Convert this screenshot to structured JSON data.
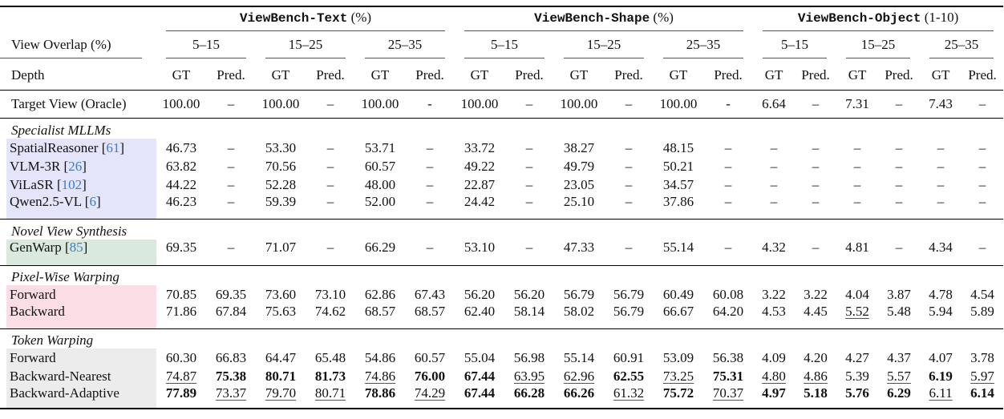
{
  "header": {
    "groups": [
      {
        "name": "ViewBench-Text",
        "unit": "(%)"
      },
      {
        "name": "ViewBench-Shape",
        "unit": "(%)"
      },
      {
        "name": "ViewBench-Object",
        "unit": "(1-10)"
      }
    ],
    "overlap_label": "View Overlap (%)",
    "overlaps": [
      "5–15",
      "15–25",
      "25–35",
      "5–15",
      "15–25",
      "25–35",
      "5–15",
      "15–25",
      "25–35"
    ],
    "depth_label": "Depth",
    "depth": [
      "GT",
      "Pred."
    ]
  },
  "oracle": {
    "label": "Target View (Oracle)",
    "values": [
      "100.00",
      "–",
      "100.00",
      "–",
      "100.00",
      "-",
      "100.00",
      "–",
      "100.00",
      "–",
      "100.00",
      "-",
      "6.64",
      "–",
      "7.31",
      "–",
      "7.43",
      "–"
    ]
  },
  "colors": {
    "specialist": "#e4e4fb",
    "nvs": "#d9e9de",
    "pixel": "#fbdde6",
    "token": "#ececec",
    "cite": "#3a7fc1"
  },
  "sections": [
    {
      "title": "Specialist MLLMs",
      "color": "#e4e4fb",
      "rows": [
        {
          "name": "SpatialReasoner",
          "cite": "61",
          "values": [
            "46.73",
            "–",
            "53.30",
            "–",
            "53.71",
            "–",
            "33.72",
            "–",
            "38.27",
            "–",
            "48.15",
            "–",
            "–",
            "–",
            "–",
            "–",
            "–",
            "–"
          ],
          "styles": []
        },
        {
          "name": "VLM-3R",
          "cite": "26",
          "values": [
            "63.82",
            "–",
            "70.56",
            "–",
            "60.57",
            "–",
            "49.22",
            "–",
            "49.79",
            "–",
            "50.21",
            "–",
            "–",
            "–",
            "–",
            "–",
            "–",
            "–"
          ],
          "styles": []
        },
        {
          "name": "ViLaSR",
          "cite": "102",
          "values": [
            "44.22",
            "–",
            "52.28",
            "–",
            "48.00",
            "–",
            "22.87",
            "–",
            "23.05",
            "–",
            "34.57",
            "–",
            "–",
            "–",
            "–",
            "–",
            "–",
            "–"
          ],
          "styles": []
        },
        {
          "name": "Qwen2.5-VL",
          "cite": "6",
          "values": [
            "46.23",
            "–",
            "59.39",
            "–",
            "52.00",
            "–",
            "24.42",
            "–",
            "25.10",
            "–",
            "37.86",
            "–",
            "–",
            "–",
            "–",
            "–",
            "–",
            "–"
          ],
          "styles": []
        }
      ]
    },
    {
      "title": "Novel View Synthesis",
      "color": "#d9e9de",
      "rows": [
        {
          "name": "GenWarp",
          "cite": "85",
          "values": [
            "69.35",
            "–",
            "71.07",
            "–",
            "66.29",
            "–",
            "53.10",
            "–",
            "47.33",
            "–",
            "55.14",
            "–",
            "4.32",
            "–",
            "4.81",
            "–",
            "4.34",
            "–"
          ],
          "styles": []
        }
      ]
    },
    {
      "title": "Pixel-Wise Warping",
      "color": "#fbdde6",
      "rows": [
        {
          "name": "Forward",
          "values": [
            "70.85",
            "69.35",
            "73.60",
            "73.10",
            "62.86",
            "67.43",
            "56.20",
            "56.20",
            "56.79",
            "56.79",
            "60.49",
            "60.08",
            "3.22",
            "3.22",
            "4.04",
            "3.87",
            "4.78",
            "4.54"
          ],
          "styles": []
        },
        {
          "name": "Backward",
          "values": [
            "71.86",
            "67.84",
            "75.63",
            "74.62",
            "68.57",
            "68.57",
            "62.40",
            "58.14",
            "58.02",
            "56.79",
            "66.67",
            "64.20",
            "4.53",
            "4.45",
            "5.52",
            "5.48",
            "5.94",
            "5.89"
          ],
          "styles": [
            "",
            "",
            "",
            "",
            "",
            "",
            "",
            "",
            "",
            "",
            "",
            "",
            "",
            "",
            "u",
            "",
            "",
            ""
          ]
        }
      ]
    },
    {
      "title": "Token Warping",
      "color": "#ececec",
      "rows": [
        {
          "name": "Forward",
          "values": [
            "60.30",
            "66.83",
            "64.47",
            "65.48",
            "54.86",
            "60.57",
            "55.04",
            "56.98",
            "55.14",
            "60.91",
            "53.09",
            "56.38",
            "4.09",
            "4.20",
            "4.27",
            "4.37",
            "4.07",
            "3.78"
          ],
          "styles": []
        },
        {
          "name": "Backward-Nearest",
          "values": [
            "74.87",
            "75.38",
            "80.71",
            "81.73",
            "74.86",
            "76.00",
            "67.44",
            "63.95",
            "62.96",
            "62.55",
            "73.25",
            "75.31",
            "4.80",
            "4.86",
            "5.39",
            "5.57",
            "6.19",
            "5.97"
          ],
          "styles": [
            "u",
            "b",
            "b",
            "b",
            "u",
            "b",
            "b",
            "u",
            "u",
            "b",
            "u",
            "b",
            "u",
            "u",
            "",
            "u",
            "b",
            "u"
          ]
        },
        {
          "name": "Backward-Adaptive",
          "values": [
            "77.89",
            "73.37",
            "79.70",
            "80.71",
            "78.86",
            "74.29",
            "67.44",
            "66.28",
            "66.26",
            "61.32",
            "75.72",
            "70.37",
            "4.97",
            "5.18",
            "5.76",
            "6.29",
            "6.11",
            "6.14"
          ],
          "styles": [
            "b",
            "u",
            "u",
            "u",
            "b",
            "u",
            "b",
            "b",
            "b",
            "u",
            "b",
            "u",
            "b",
            "b",
            "b",
            "b",
            "u",
            "b"
          ]
        }
      ]
    }
  ]
}
